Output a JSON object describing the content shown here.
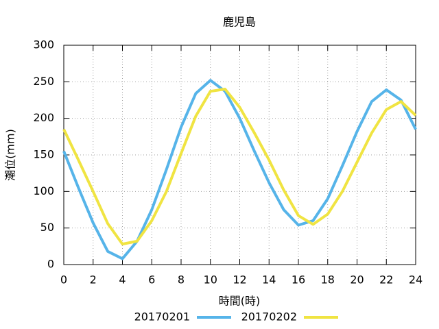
{
  "chart_data": {
    "type": "line",
    "title": "鹿児島",
    "x_label": "時間(時)",
    "y_label": "潮位(mm)",
    "x": [
      0,
      1,
      2,
      3,
      4,
      5,
      6,
      7,
      8,
      9,
      10,
      11,
      12,
      13,
      14,
      15,
      16,
      17,
      18,
      19,
      20,
      21,
      22,
      23,
      24
    ],
    "series": [
      {
        "name": "20170201",
        "color": "#56b4e9",
        "values": [
          155,
          105,
          57,
          18,
          8,
          32,
          75,
          130,
          188,
          234,
          252,
          237,
          200,
          155,
          112,
          75,
          54,
          60,
          90,
          135,
          182,
          223,
          239,
          225,
          185
        ]
      },
      {
        "name": "20170202",
        "color": "#f0e442",
        "values": [
          185,
          143,
          100,
          56,
          28,
          32,
          60,
          100,
          152,
          203,
          237,
          240,
          215,
          180,
          143,
          102,
          67,
          55,
          69,
          100,
          140,
          180,
          212,
          223,
          204
        ]
      }
    ],
    "xlim": [
      0,
      24
    ],
    "xticks": [
      0,
      2,
      4,
      6,
      8,
      10,
      12,
      14,
      16,
      18,
      20,
      22,
      24
    ],
    "ylim": [
      0,
      300
    ],
    "yticks": [
      0,
      50,
      100,
      150,
      200,
      250,
      300
    ],
    "grid": true,
    "legend": "bottom"
  }
}
